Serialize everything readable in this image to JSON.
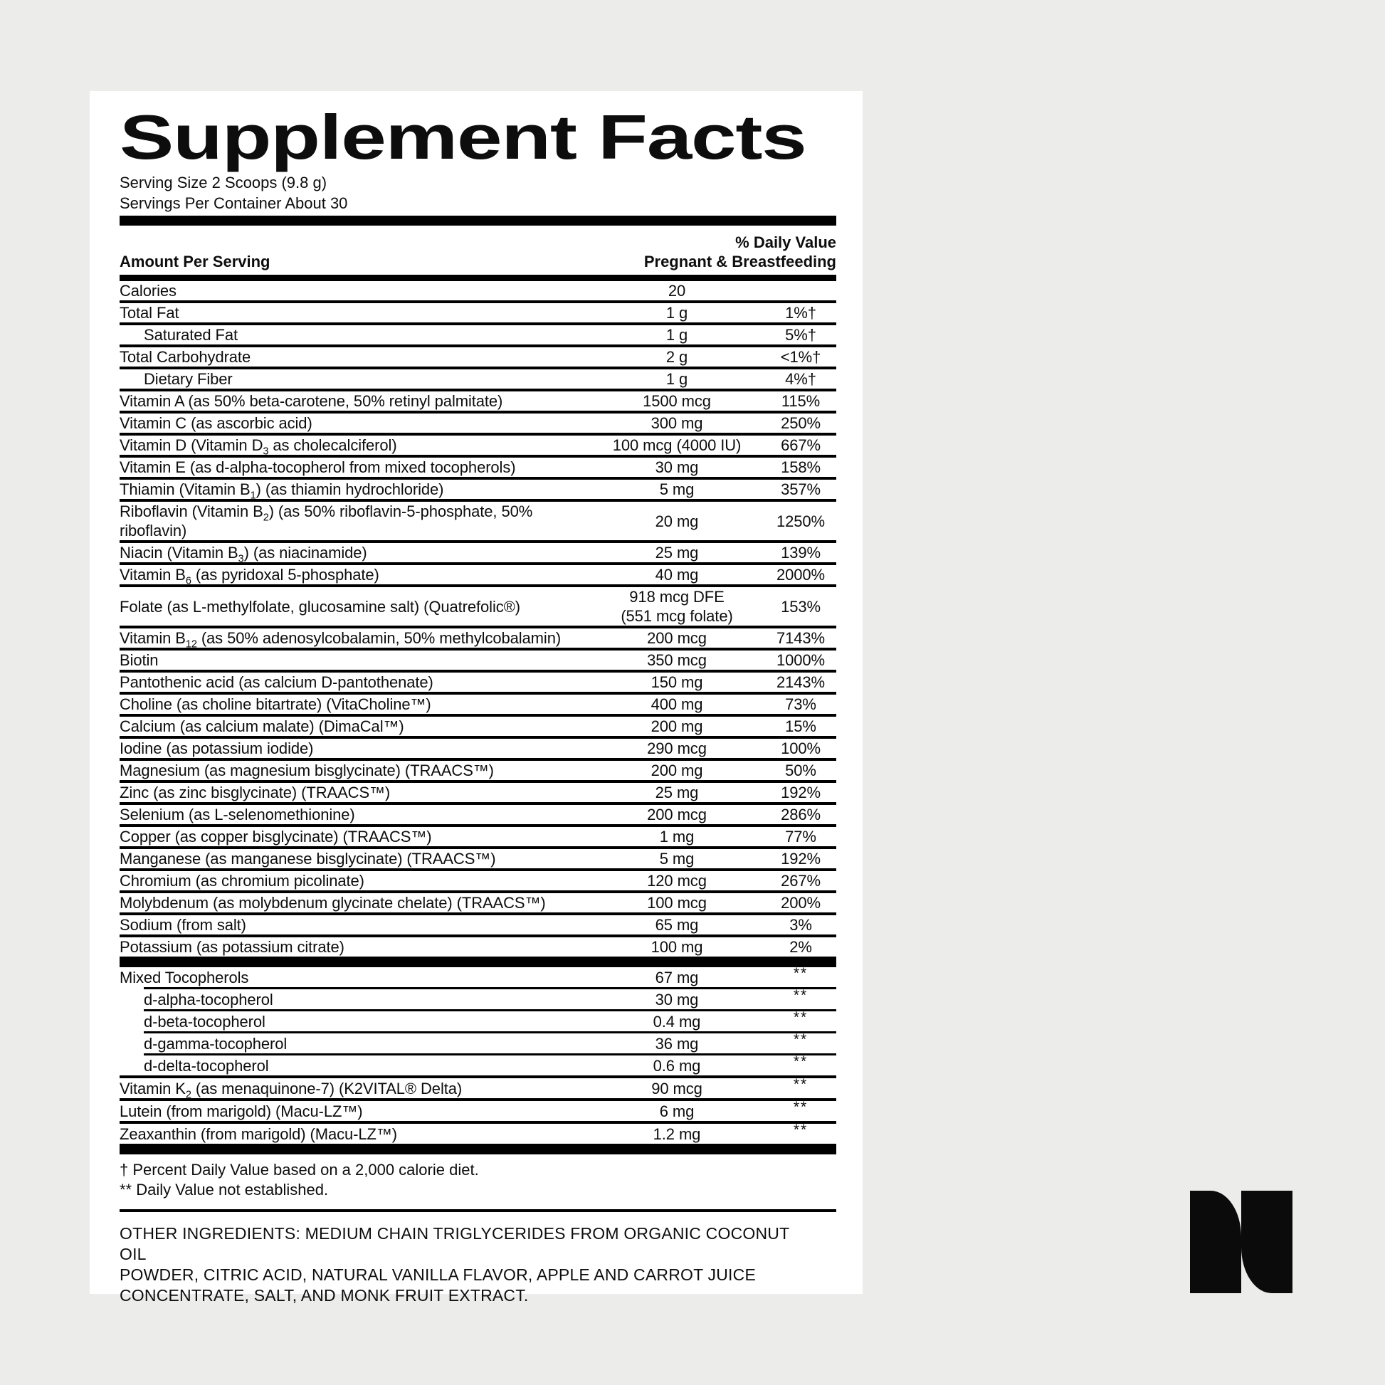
{
  "colors": {
    "background": "#ECECEA",
    "panel": "#FFFFFF",
    "ink": "#0D0D0D",
    "logo": "#0B0B0B"
  },
  "label": {
    "title": "Supplement Facts",
    "serving_size": "Serving Size 2 Scoops (9.8 g)",
    "servings_per_container": "Servings Per Container About 30",
    "header": {
      "daily_value": "% Daily Value",
      "amount_per_serving": "Amount Per Serving",
      "population": "Pregnant & Breastfeeding"
    },
    "sections": [
      {
        "rows": [
          {
            "name": "Calories",
            "amount": "20",
            "dv": ""
          },
          {
            "name": "Total Fat",
            "amount": "1 g",
            "dv": "1%†"
          },
          {
            "name": "Saturated Fat",
            "amount": "1 g",
            "dv": "5%†",
            "indent": true
          },
          {
            "name": "Total Carbohydrate",
            "amount": "2 g",
            "dv": "<1%†"
          },
          {
            "name": "Dietary Fiber",
            "amount": "1 g",
            "dv": "4%†",
            "indent": true
          },
          {
            "name": "Vitamin A (as 50% beta-carotene, 50% retinyl palmitate)",
            "amount": "1500 mcg",
            "dv": "115%"
          },
          {
            "name": "Vitamin C (as ascorbic acid)",
            "amount": "300 mg",
            "dv": "250%"
          },
          {
            "name": "Vitamin D (Vitamin D{3} as cholecalciferol)",
            "amount": "100 mcg (4000 IU)",
            "dv": "667%"
          },
          {
            "name": "Vitamin E (as d-alpha-tocopherol from mixed tocopherols)",
            "amount": "30 mg",
            "dv": "158%"
          },
          {
            "name": "Thiamin (Vitamin B{1}) (as thiamin hydrochloride)",
            "amount": "5 mg",
            "dv": "357%"
          },
          {
            "name": "Riboflavin (Vitamin B{2}) (as 50% riboflavin-5-phosphate, 50%{br}riboflavin)",
            "amount": "20 mg",
            "dv": "1250%"
          },
          {
            "name": "Niacin (Vitamin B{3}) (as niacinamide)",
            "amount": "25 mg",
            "dv": "139%"
          },
          {
            "name": "Vitamin B{6} (as pyridoxal 5-phosphate)",
            "amount": "40 mg",
            "dv": "2000%"
          },
          {
            "name": "Folate (as L-methylfolate, glucosamine salt) (Quatrefolic®)",
            "amount": "918 mcg DFE\n(551 mcg folate)",
            "dv": "153%"
          },
          {
            "name": "Vitamin B{12} (as 50% adenosylcobalamin, 50% methylcobalamin)",
            "amount": "200 mcg",
            "dv": "7143%"
          },
          {
            "name": "Biotin",
            "amount": "350 mcg",
            "dv": "1000%"
          },
          {
            "name": "Pantothenic acid (as calcium D-pantothenate)",
            "amount": "150 mg",
            "dv": "2143%"
          },
          {
            "name": "Choline (as choline bitartrate) (VitaCholine™)",
            "amount": "400 mg",
            "dv": "73%"
          },
          {
            "name": "Calcium (as calcium malate) (DimaCal™)",
            "amount": "200 mg",
            "dv": "15%"
          },
          {
            "name": "Iodine (as potassium iodide)",
            "amount": "290 mcg",
            "dv": "100%"
          },
          {
            "name": "Magnesium (as magnesium bisglycinate) (TRAACS™)",
            "amount": "200 mg",
            "dv": "50%"
          },
          {
            "name": "Zinc (as zinc bisglycinate) (TRAACS™)",
            "amount": "25 mg",
            "dv": "192%"
          },
          {
            "name": "Selenium (as L-selenomethionine)",
            "amount": "200 mcg",
            "dv": "286%"
          },
          {
            "name": "Copper (as copper bisglycinate) (TRAACS™)",
            "amount": "1 mg",
            "dv": "77%"
          },
          {
            "name": "Manganese (as manganese bisglycinate) (TRAACS™)",
            "amount": "5 mg",
            "dv": "192%"
          },
          {
            "name": "Chromium (as chromium picolinate)",
            "amount": "120 mcg",
            "dv": "267%"
          },
          {
            "name": "Molybdenum (as molybdenum glycinate chelate) (TRAACS™)",
            "amount": "100 mcg",
            "dv": "200%"
          },
          {
            "name": "Sodium (from salt)",
            "amount": "65 mg",
            "dv": "3%"
          },
          {
            "name": "Potassium (as potassium citrate)",
            "amount": "100 mg",
            "dv": "2%"
          }
        ]
      },
      {
        "rows": [
          {
            "name": "Mixed Tocopherols",
            "amount": "67 mg",
            "dv": "**"
          },
          {
            "name": "d-alpha-tocopherol",
            "amount": "30 mg",
            "dv": "**",
            "indent": true,
            "inset_sep": true
          },
          {
            "name": "d-beta-tocopherol",
            "amount": "0.4 mg",
            "dv": "**",
            "indent": true,
            "inset_sep": true
          },
          {
            "name": "d-gamma-tocopherol",
            "amount": "36 mg",
            "dv": "**",
            "indent": true,
            "inset_sep": true
          },
          {
            "name": "d-delta-tocopherol",
            "amount": "0.6 mg",
            "dv": "**",
            "indent": true,
            "inset_sep": true
          },
          {
            "name": "Vitamin K{2} (as menaquinone-7) (K2VITAL® Delta)",
            "amount": "90 mcg",
            "dv": "**"
          },
          {
            "name": "Lutein (from marigold) (Macu-LZ™)",
            "amount": "6 mg",
            "dv": "**"
          },
          {
            "name": "Zeaxanthin (from marigold) (Macu-LZ™)",
            "amount": "1.2 mg",
            "dv": "**"
          }
        ]
      }
    ],
    "footnotes": [
      "† Percent Daily Value based on a 2,000 calorie diet.",
      "** Daily Value not established."
    ],
    "other_ingredients_lines": [
      "OTHER INGREDIENTS: MEDIUM CHAIN TRIGLYCERIDES FROM ORGANIC COCONUT OIL",
      "POWDER, CITRIC ACID, NATURAL VANILLA FLAVOR, APPLE AND CARROT JUICE",
      "CONCENTRATE, SALT, AND MONK FRUIT EXTRACT."
    ]
  },
  "logo": {
    "name": "needed-n-logo"
  }
}
